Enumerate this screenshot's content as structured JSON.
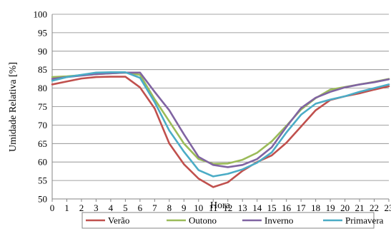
{
  "chart_data": {
    "type": "line",
    "title": "",
    "xlabel": "Hora",
    "ylabel": "Umidade Relativa [%]",
    "x": [
      0,
      1,
      2,
      3,
      4,
      5,
      6,
      7,
      8,
      9,
      10,
      11,
      12,
      13,
      14,
      15,
      16,
      17,
      18,
      19,
      20,
      21,
      22,
      23
    ],
    "xlim": [
      0,
      23
    ],
    "ylim": [
      50,
      100
    ],
    "yticks": [
      50,
      55,
      60,
      65,
      70,
      75,
      80,
      85,
      90,
      95,
      100
    ],
    "grid": "horizontal",
    "legend_position": "bottom",
    "series": [
      {
        "name": "Verão",
        "color": "#c0504d",
        "values": [
          81.0,
          81.8,
          82.6,
          83.0,
          83.1,
          83.1,
          80.2,
          74.5,
          65.0,
          59.4,
          55.5,
          53.2,
          54.5,
          57.6,
          60.0,
          61.8,
          65.2,
          69.6,
          74.0,
          76.8,
          77.8,
          78.6,
          79.6,
          80.5
        ]
      },
      {
        "name": "Outono",
        "color": "#9bbb59",
        "values": [
          83.0,
          83.2,
          83.5,
          83.8,
          84.0,
          84.2,
          83.6,
          77.0,
          71.0,
          65.0,
          60.8,
          59.5,
          59.6,
          60.6,
          62.5,
          65.6,
          69.8,
          74.2,
          77.3,
          79.6,
          80.3,
          81.0,
          81.7,
          82.5
        ]
      },
      {
        "name": "Inverno",
        "color": "#8064a2",
        "values": [
          82.5,
          83.0,
          83.4,
          83.8,
          84.0,
          84.2,
          84.2,
          79.0,
          74.0,
          67.5,
          61.4,
          59.2,
          58.6,
          59.2,
          60.8,
          64.0,
          69.5,
          74.6,
          77.4,
          79.0,
          80.2,
          81.0,
          81.6,
          82.4
        ]
      },
      {
        "name": "Primavera",
        "color": "#4bacc6",
        "values": [
          82.0,
          83.0,
          83.6,
          84.2,
          84.3,
          84.3,
          82.8,
          76.2,
          68.5,
          62.8,
          57.8,
          56.1,
          56.8,
          58.0,
          59.8,
          62.6,
          68.0,
          72.8,
          75.8,
          76.9,
          77.8,
          79.0,
          80.0,
          81.0
        ]
      }
    ]
  }
}
